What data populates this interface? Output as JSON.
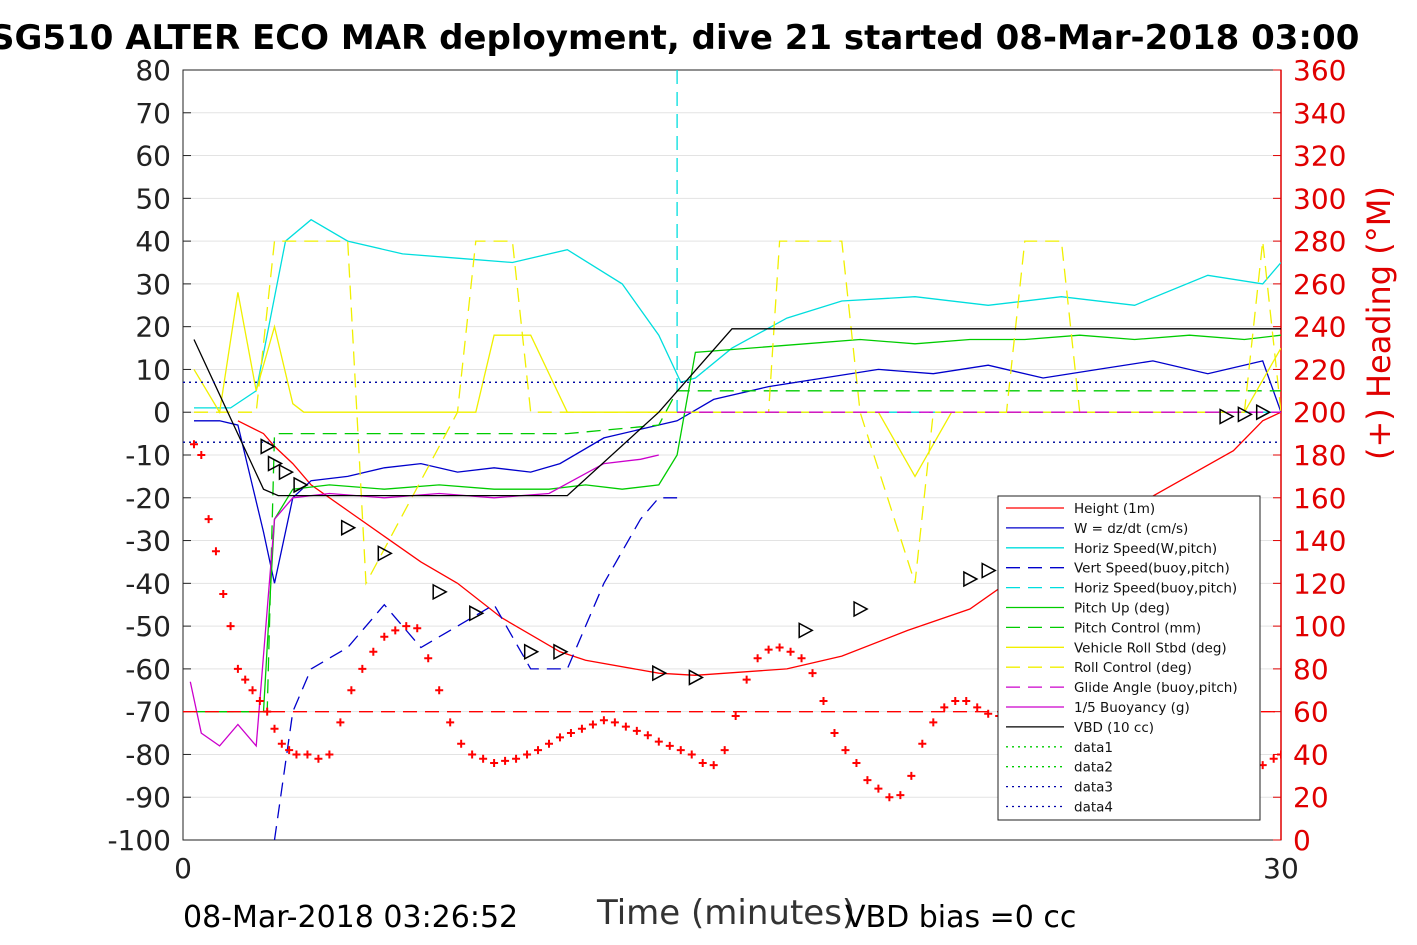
{
  "chart_data": {
    "type": "line",
    "title": "SG510 ALTER ECO MAR deployment, dive 21 started 08-Mar-2018 03:00",
    "xlabel": "Time (minutes)",
    "ylabel_right": "(+) Heading (°M)",
    "footer_left": "08-Mar-2018 03:26:52",
    "footer_right": "VBD bias =0 cc",
    "xlim": [
      0,
      30
    ],
    "ylim_left": [
      -100,
      80
    ],
    "ylim_right": [
      0,
      360
    ],
    "x_ticks": [
      "0",
      "30"
    ],
    "y_ticks_left": [
      "80",
      "70",
      "60",
      "50",
      "40",
      "30",
      "20",
      "10",
      "0",
      "-10",
      "-20",
      "-30",
      "-40",
      "-50",
      "-60",
      "-70",
      "-80",
      "-90",
      "-100"
    ],
    "y_ticks_right": [
      "360",
      "340",
      "320",
      "300",
      "280",
      "260",
      "240",
      "220",
      "200",
      "180",
      "160",
      "140",
      "120",
      "100",
      "80",
      "60",
      "40",
      "20",
      "0"
    ],
    "right_axis_color": "#e00000",
    "grid": "horizontal",
    "legend_position": "lower-right",
    "legend": [
      {
        "label": "Height (1m)",
        "color": "#ff0000",
        "style": "solid"
      },
      {
        "label": "W = dz/dt (cm/s)",
        "color": "#0000cc",
        "style": "solid"
      },
      {
        "label": "Horiz Speed(W,pitch)",
        "color": "#00dede",
        "style": "solid"
      },
      {
        "label": "Vert Speed(buoy,pitch)",
        "color": "#0000cc",
        "style": "dashed"
      },
      {
        "label": "Horiz Speed(buoy,pitch)",
        "color": "#00dede",
        "style": "dashed"
      },
      {
        "label": "Pitch Up (deg)",
        "color": "#00cc00",
        "style": "solid"
      },
      {
        "label": "Pitch Control (mm)",
        "color": "#00cc00",
        "style": "dashed"
      },
      {
        "label": "Vehicle Roll Stbd (deg)",
        "color": "#f0f000",
        "style": "solid"
      },
      {
        "label": "Roll Control (deg)",
        "color": "#f0f000",
        "style": "dashed"
      },
      {
        "label": "Glide Angle (buoy,pitch)",
        "color": "#cc00cc",
        "style": "dashed"
      },
      {
        "label": "1/5 Buoyancy (g)",
        "color": "#cc00cc",
        "style": "solid"
      },
      {
        "label": "VBD (10 cc)",
        "color": "#000000",
        "style": "solid"
      },
      {
        "label": "data1",
        "color": "#00cc00",
        "style": "dotted"
      },
      {
        "label": "data2",
        "color": "#00cc00",
        "style": "dotted"
      },
      {
        "label": "data3",
        "color": "#0000aa",
        "style": "dotted"
      },
      {
        "label": "data4",
        "color": "#0000aa",
        "style": "dotted"
      }
    ],
    "series": [
      {
        "name": "Height (1m)",
        "color": "#ff0000",
        "style": "solid",
        "x": [
          1.5,
          2.2,
          2.5,
          3.0,
          3.5,
          4.5,
          5.5,
          6.5,
          7.5,
          8.7,
          10.3,
          11.0,
          13.0,
          14.0,
          16.5,
          18.0,
          19.8,
          21.5,
          22.5,
          23.5,
          25.0,
          26.0,
          28.7,
          29.5,
          30.0
        ],
        "y": [
          -2,
          -5,
          -8,
          -12,
          -17,
          -23,
          -29,
          -35,
          -40,
          -48,
          -56,
          -58,
          -61,
          -61.5,
          -60,
          -57,
          -51,
          -46,
          -40,
          -37,
          -30,
          -22,
          -9,
          -2,
          0
        ]
      },
      {
        "name": "W = dz/dt (cm/s)",
        "color": "#0000cc",
        "style": "solid",
        "x": [
          0.3,
          1.0,
          1.5,
          2.2,
          2.5,
          3.0,
          3.5,
          4.5,
          5.5,
          6.5,
          7.5,
          8.5,
          9.5,
          10.3,
          11.5,
          12.5,
          13.5,
          14.5,
          16.0,
          17.5,
          19.0,
          20.5,
          22.0,
          23.5,
          25.0,
          26.5,
          28.0,
          29.5,
          30.0
        ],
        "y": [
          -2,
          -2,
          -3,
          -28,
          -40,
          -20,
          -16,
          -15,
          -13,
          -12,
          -14,
          -13,
          -14,
          -12,
          -6,
          -4,
          -2,
          3,
          6,
          8,
          10,
          9,
          11,
          8,
          10,
          12,
          9,
          12,
          0
        ]
      },
      {
        "name": "Horiz Speed(W,pitch)",
        "color": "#00dede",
        "style": "solid",
        "x": [
          0.3,
          1.3,
          2.0,
          2.8,
          3.5,
          4.5,
          6.0,
          7.5,
          9.0,
          10.5,
          12.0,
          13.0,
          13.6,
          14.0,
          15.0,
          16.5,
          18.0,
          20.0,
          22.0,
          24.0,
          26.0,
          28.0,
          29.5,
          30.0
        ],
        "y": [
          1,
          1,
          5,
          40,
          45,
          40,
          37,
          36,
          35,
          38,
          30,
          18,
          7,
          8,
          15,
          22,
          26,
          27,
          25,
          27,
          25,
          32,
          30,
          35
        ]
      },
      {
        "name": "Vert Speed(buoy,pitch)",
        "color": "#0000cc",
        "style": "dashed",
        "x": [
          2.5,
          3.0,
          3.5,
          4.5,
          5.5,
          6.5,
          7.5,
          8.5,
          9.5,
          10.5,
          11.5,
          12.5,
          13.0,
          13.5
        ],
        "y": [
          -100,
          -70,
          -60,
          -55,
          -45,
          -55,
          -50,
          -45,
          -60,
          -60,
          -40,
          -25,
          -20,
          -20
        ]
      },
      {
        "name": "Horiz Speed(buoy,pitch)",
        "color": "#00dede",
        "style": "dashed",
        "x": [
          13.5,
          13.5,
          13.6,
          14.0,
          30.0
        ],
        "y": [
          80,
          0,
          0,
          0,
          0
        ]
      },
      {
        "name": "Pitch Up (deg)",
        "color": "#00cc00",
        "style": "solid",
        "x": [
          0.3,
          2.2,
          2.5,
          3.0,
          4.0,
          5.5,
          7.0,
          8.5,
          10.0,
          11.0,
          12.0,
          13.0,
          13.5,
          14.0,
          15.5,
          17.0,
          18.5,
          20.0,
          21.5,
          23.0,
          24.5,
          26.0,
          27.5,
          29.0,
          30.0
        ],
        "y": [
          -70,
          -70,
          -25,
          -18,
          -17,
          -18,
          -17,
          -18,
          -18,
          -17,
          -18,
          -17,
          -10,
          14,
          15,
          16,
          17,
          16,
          17,
          17,
          18,
          17,
          18,
          17,
          18
        ]
      },
      {
        "name": "Pitch Control (mm)",
        "color": "#00cc00",
        "style": "dashed",
        "x": [
          1.0,
          2.3,
          2.5,
          10.5,
          13.0,
          13.5,
          30.0
        ],
        "y": [
          -70,
          -70,
          -5,
          -5,
          -3,
          5,
          5
        ]
      },
      {
        "name": "Vehicle Roll Stbd (deg)",
        "color": "#f0f000",
        "style": "solid",
        "x": [
          0.3,
          1.0,
          1.5,
          2.0,
          2.5,
          3.0,
          3.3,
          4.5,
          6.0,
          7.0,
          8.0,
          8.5,
          9.0,
          9.5,
          10.5,
          11.5,
          13.0,
          14.0,
          15.0,
          16.0,
          17.0,
          18.0,
          19.0,
          20.0,
          21.0,
          22.0,
          23.0,
          24.0,
          25.0,
          26.0,
          27.0,
          28.0,
          29.0,
          30.0
        ],
        "y": [
          10,
          0,
          28,
          5,
          20,
          2,
          0,
          0,
          0,
          0,
          0,
          18,
          18,
          18,
          0,
          0,
          0,
          0,
          0,
          0,
          0,
          0,
          0,
          -15,
          0,
          0,
          0,
          0,
          0,
          0,
          0,
          0,
          0,
          15
        ]
      },
      {
        "name": "Roll Control (deg)",
        "color": "#f0f000",
        "style": "dashed",
        "x": [
          0.3,
          2.0,
          2.5,
          4.5,
          5.0,
          7.5,
          8.0,
          9.0,
          9.5,
          16.0,
          16.3,
          18.0,
          18.5,
          20.0,
          20.5,
          22.5,
          23.0,
          24.0,
          24.5,
          29.0,
          29.5,
          30.0
        ],
        "y": [
          0,
          0,
          40,
          40,
          -40,
          0,
          40,
          40,
          0,
          0,
          40,
          40,
          0,
          -40,
          0,
          0,
          40,
          40,
          0,
          0,
          40,
          0
        ]
      },
      {
        "name": "Glide Angle (buoy,pitch)",
        "color": "#cc00cc",
        "style": "dashed",
        "x": [
          13.5,
          30.0
        ],
        "y": [
          0,
          0
        ]
      },
      {
        "name": "1/5 Buoyancy (g)",
        "color": "#cc00cc",
        "style": "solid",
        "x": [
          0.2,
          0.5,
          1.0,
          1.5,
          2.0,
          2.5,
          3.0,
          4.0,
          5.5,
          7.0,
          8.5,
          10.0,
          11.5,
          12.5,
          13.0
        ],
        "y": [
          -63,
          -75,
          -78,
          -73,
          -78,
          -25,
          -20,
          -19,
          -20,
          -19,
          -20,
          -19,
          -12,
          -11,
          -10
        ]
      },
      {
        "name": "VBD (10 cc)",
        "color": "#000000",
        "style": "solid",
        "x": [
          0.3,
          2.2,
          2.6,
          10.5,
          13.0,
          15.0,
          30.0
        ],
        "y": [
          17,
          -18,
          -19.5,
          -19.5,
          0,
          19.5,
          19.5
        ]
      },
      {
        "name": "data1",
        "color": "#00cc00",
        "style": "dotted",
        "x": [
          0,
          30
        ],
        "y": [
          7,
          7
        ]
      },
      {
        "name": "data2",
        "color": "#00cc00",
        "style": "dotted",
        "x": [
          0,
          30
        ],
        "y": [
          -7,
          -7
        ]
      },
      {
        "name": "data3",
        "color": "#0000aa",
        "style": "dotted",
        "x": [
          0,
          30
        ],
        "y": [
          7,
          7
        ]
      },
      {
        "name": "data4",
        "color": "#0000aa",
        "style": "dotted",
        "x": [
          0,
          30
        ],
        "y": [
          -7,
          -7
        ]
      },
      {
        "name": "Heading reference",
        "color": "#ff0000",
        "style": "dashed",
        "axis": "right",
        "x": [
          0,
          30
        ],
        "y": [
          60,
          60
        ]
      }
    ],
    "heading_points": {
      "axis": "right",
      "color": "#ff0000",
      "marker": "plus",
      "x": [
        0.3,
        0.5,
        0.7,
        0.9,
        1.1,
        1.3,
        1.5,
        1.7,
        1.9,
        2.1,
        2.3,
        2.5,
        2.7,
        2.9,
        3.1,
        3.4,
        3.7,
        4.0,
        4.3,
        4.6,
        4.9,
        5.2,
        5.5,
        5.8,
        6.1,
        6.4,
        6.7,
        7.0,
        7.3,
        7.6,
        7.9,
        8.2,
        8.5,
        8.8,
        9.1,
        9.4,
        9.7,
        10.0,
        10.3,
        10.6,
        10.9,
        11.2,
        11.5,
        11.8,
        12.1,
        12.4,
        12.7,
        13.0,
        13.3,
        13.6,
        13.9,
        14.2,
        14.5,
        14.8,
        15.1,
        15.4,
        15.7,
        16.0,
        16.3,
        16.6,
        16.9,
        17.2,
        17.5,
        17.8,
        18.1,
        18.4,
        18.7,
        19.0,
        19.3,
        19.6,
        19.9,
        20.2,
        20.5,
        20.8,
        21.1,
        21.4,
        21.7,
        22.0,
        22.3,
        22.6,
        22.9,
        23.2,
        23.5,
        23.8,
        24.1,
        24.4,
        24.7,
        25.0,
        25.3,
        25.6,
        25.9,
        26.2,
        26.5,
        26.8,
        27.1,
        27.4,
        27.7,
        28.0,
        28.3,
        28.6,
        28.9,
        29.2,
        29.5,
        29.8,
        30.0
      ],
      "y": [
        185,
        180,
        150,
        135,
        115,
        100,
        80,
        75,
        70,
        65,
        60,
        52,
        45,
        42,
        40,
        40,
        38,
        40,
        55,
        70,
        80,
        88,
        95,
        98,
        100,
        99,
        85,
        70,
        55,
        45,
        40,
        38,
        36,
        37,
        38,
        40,
        42,
        45,
        48,
        50,
        52,
        54,
        56,
        55,
        53,
        51,
        49,
        46,
        44,
        42,
        40,
        36,
        35,
        42,
        58,
        75,
        85,
        89,
        90,
        88,
        85,
        78,
        65,
        50,
        42,
        36,
        28,
        24,
        20,
        21,
        30,
        45,
        55,
        62,
        65,
        65,
        62,
        59,
        58,
        55,
        52,
        55,
        60,
        58,
        54,
        50,
        47,
        45,
        43,
        40,
        38,
        36,
        35,
        33,
        34,
        30,
        25,
        20,
        22,
        24,
        30,
        33,
        35,
        38,
        40
      ]
    },
    "trajectory_triangles": {
      "color": "#000000",
      "x": [
        2.3,
        2.5,
        2.8,
        3.2,
        4.5,
        5.5,
        7.0,
        8.0,
        9.5,
        10.3,
        13.0,
        14.0,
        17.0,
        18.5,
        21.5,
        22.0,
        23.5,
        25.0,
        28.5,
        29.0,
        29.5
      ],
      "y": [
        -8,
        -12,
        -14,
        -17,
        -27,
        -33,
        -42,
        -47,
        -56,
        -56,
        -61,
        -62,
        -51,
        -46,
        -39,
        -37,
        -30,
        -23,
        -1,
        -0.5,
        0
      ]
    }
  }
}
